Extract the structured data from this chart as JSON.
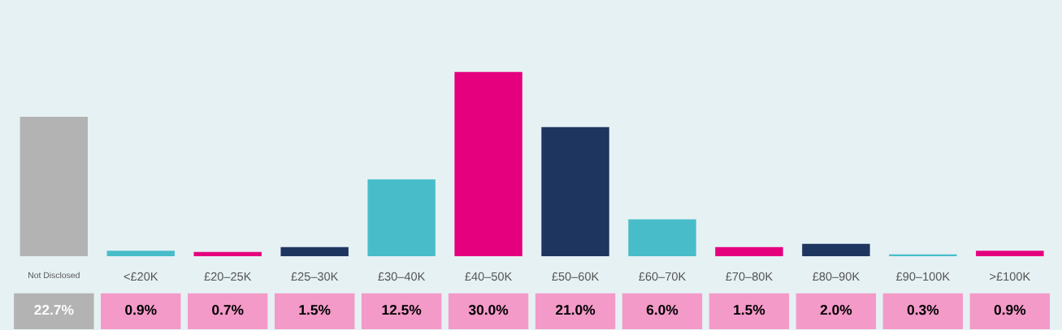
{
  "chart_data": {
    "type": "bar",
    "categories": [
      "Not Disclosed",
      "<£20K",
      "£20–25K",
      "£25–30K",
      "£30–40K",
      "£40–50K",
      "£50–60K",
      "£60–70K",
      "£70–80K",
      "£80–90K",
      "£90–100K",
      ">£100K"
    ],
    "values": [
      22.7,
      0.9,
      0.7,
      1.5,
      12.5,
      30.0,
      21.0,
      6.0,
      1.5,
      2.0,
      0.3,
      0.9
    ],
    "colors": [
      "#b3b3b3",
      "#48bdc9",
      "#e5007e",
      "#1e3560",
      "#48bdc9",
      "#e5007e",
      "#1e3560",
      "#48bdc9",
      "#e5007e",
      "#1e3560",
      "#48bdc9",
      "#e5007e"
    ],
    "value_labels": [
      "22.7%",
      "0.9%",
      "0.7%",
      "1.5%",
      "12.5%",
      "30.0%",
      "21.0%",
      "6.0%",
      "1.5%",
      "2.0%",
      "0.3%",
      "0.9%"
    ]
  }
}
